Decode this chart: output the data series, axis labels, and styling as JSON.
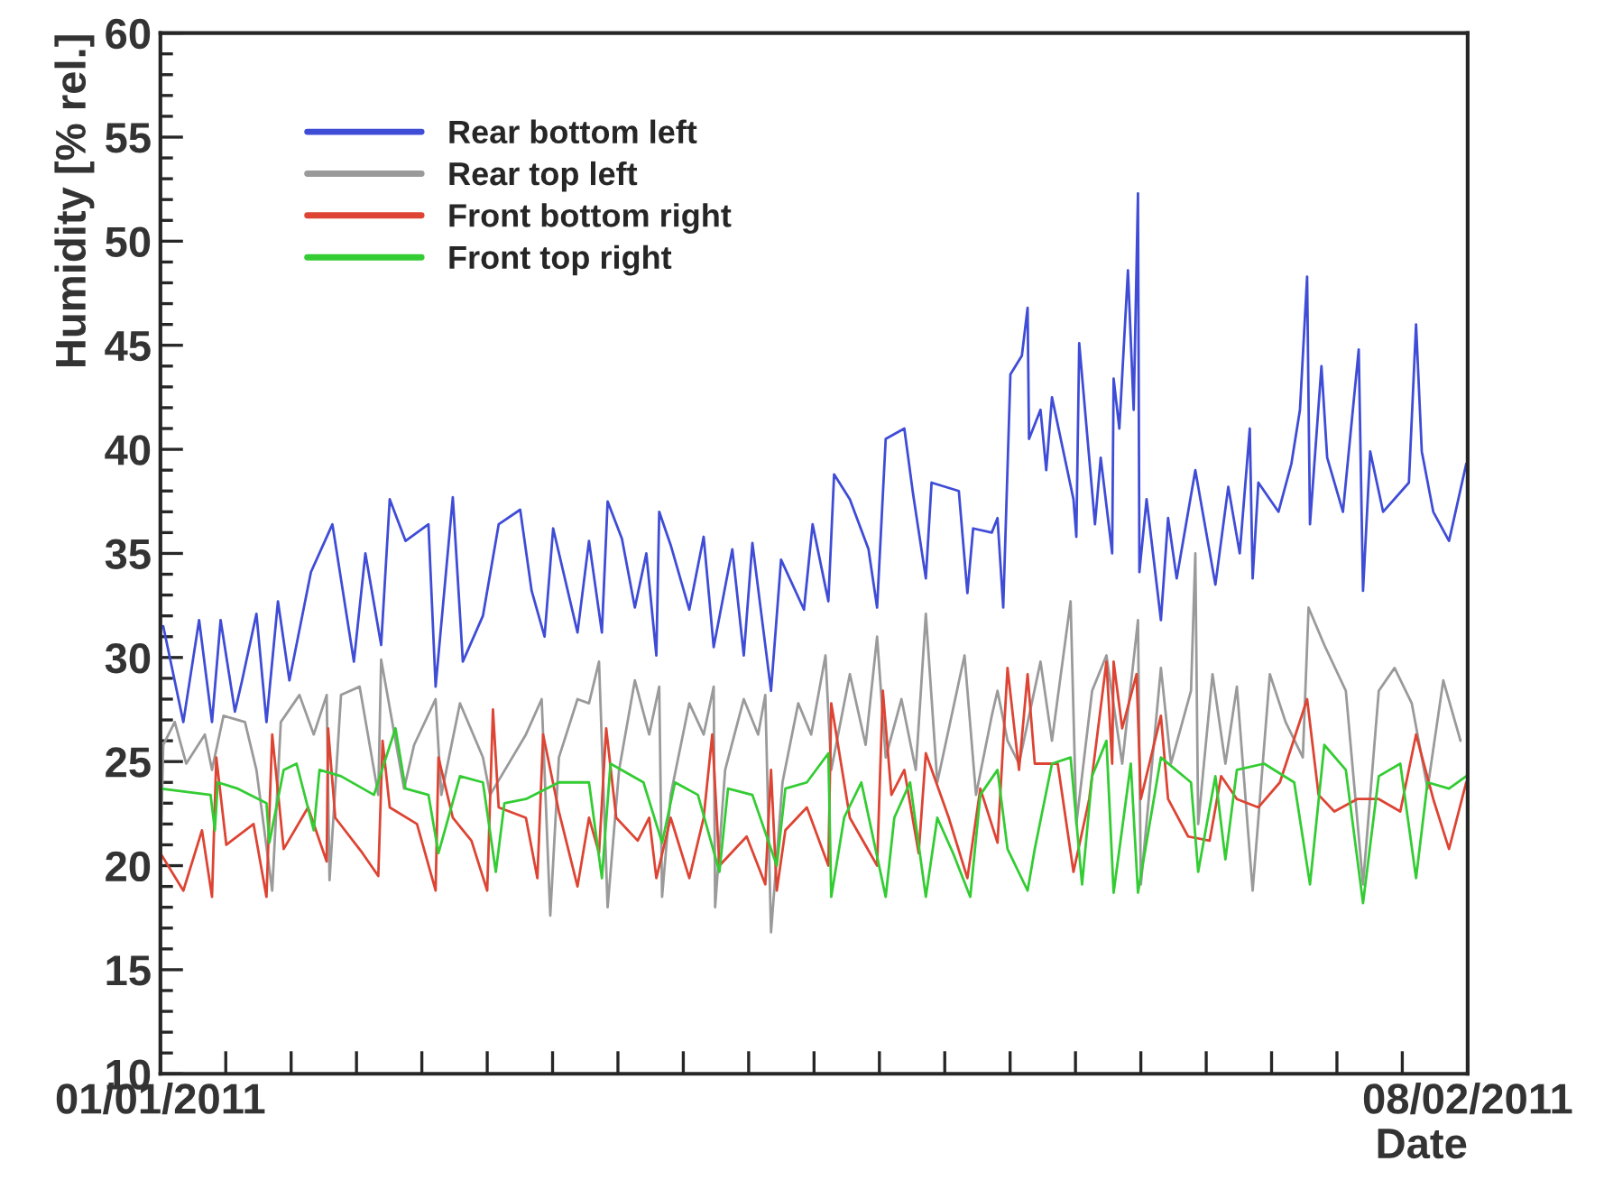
{
  "chart_data": {
    "type": "line",
    "xlabel": "Date",
    "ylabel": "Humidity [% rel.]",
    "xlim": [
      "2011-01-01T00:00",
      "2011-02-08T00:00"
    ],
    "xticks": [
      {
        "value": "2011-01-01T00:00",
        "label": "01/01/2011"
      },
      {
        "value": "2011-01-02T21:36",
        "label": null
      },
      {
        "value": "2011-01-04T19:12",
        "label": null
      },
      {
        "value": "2011-01-06T16:48",
        "label": null
      },
      {
        "value": "2011-01-08T14:24",
        "label": null
      },
      {
        "value": "2011-01-10T12:00",
        "label": null
      },
      {
        "value": "2011-01-12T09:36",
        "label": null
      },
      {
        "value": "2011-01-14T07:12",
        "label": null
      },
      {
        "value": "2011-01-16T04:48",
        "label": null
      },
      {
        "value": "2011-01-18T02:24",
        "label": null
      },
      {
        "value": "2011-01-20T00:00",
        "label": null
      },
      {
        "value": "2011-01-21T21:36",
        "label": null
      },
      {
        "value": "2011-01-23T19:12",
        "label": null
      },
      {
        "value": "2011-01-25T16:48",
        "label": null
      },
      {
        "value": "2011-01-27T14:24",
        "label": null
      },
      {
        "value": "2011-01-29T12:00",
        "label": null
      },
      {
        "value": "2011-01-31T09:36",
        "label": null
      },
      {
        "value": "2011-02-02T07:12",
        "label": null
      },
      {
        "value": "2011-02-04T04:48",
        "label": null
      },
      {
        "value": "2011-02-06T02:24",
        "label": null
      },
      {
        "value": "2011-02-08T00:00",
        "label": "08/02/2011"
      }
    ],
    "ylim": [
      10,
      60
    ],
    "yticks": [
      10,
      15,
      20,
      25,
      30,
      35,
      40,
      45,
      50,
      55,
      60
    ],
    "grid": false,
    "legend": "top left",
    "marker": "none",
    "line_style": "solid",
    "series": [
      {
        "name": "Rear bottom left",
        "color": "#3f4cd6",
        "x": [
          "2011-01-01T02:00",
          "2011-01-01T16:00",
          "2011-01-02T03:00",
          "2011-01-02T12:00",
          "2011-01-02T18:00",
          "2011-01-03T04:00",
          "2011-01-03T09:00",
          "2011-01-03T19:00",
          "2011-01-04T02:00",
          "2011-01-04T10:00",
          "2011-01-04T18:00",
          "2011-01-05T09:00",
          "2011-01-06T00:00",
          "2011-01-06T15:00",
          "2011-01-06T23:00",
          "2011-01-07T10:00",
          "2011-01-07T16:00",
          "2011-01-08T03:00",
          "2011-01-08T19:00",
          "2011-01-09T00:00",
          "2011-01-09T12:00",
          "2011-01-09T19:00",
          "2011-01-10T09:00",
          "2011-01-10T20:00",
          "2011-01-11T11:00",
          "2011-01-11T19:00",
          "2011-01-12T04:00",
          "2011-01-12T10:00",
          "2011-01-13T03:00",
          "2011-01-13T11:00",
          "2011-01-13T20:00",
          "2011-01-14T00:00",
          "2011-01-14T10:00",
          "2011-01-14T19:00",
          "2011-01-15T03:00",
          "2011-01-15T10:00",
          "2011-01-15T12:00",
          "2011-01-15T20:00",
          "2011-01-16T09:00",
          "2011-01-16T19:00",
          "2011-01-17T02:00",
          "2011-01-17T15:00",
          "2011-01-17T23:00",
          "2011-01-18T05:00",
          "2011-01-18T18:00",
          "2011-01-19T01:00",
          "2011-01-19T17:00",
          "2011-01-19T23:00",
          "2011-01-20T10:00",
          "2011-01-20T14:00",
          "2011-01-21T01:00",
          "2011-01-21T14:00",
          "2011-01-21T20:00",
          "2011-01-22T02:00",
          "2011-01-22T15:00",
          "2011-01-22T21:00",
          "2011-01-23T06:00",
          "2011-01-23T10:00",
          "2011-01-24T05:00",
          "2011-01-24T11:00",
          "2011-01-24T15:00",
          "2011-01-25T04:00",
          "2011-01-25T08:00",
          "2011-01-25T12:00",
          "2011-01-25T17:00",
          "2011-01-26T01:00",
          "2011-01-26T05:00",
          "2011-01-26T06:00",
          "2011-01-26T14:00",
          "2011-01-26T18:00",
          "2011-01-26T22:00",
          "2011-01-27T13:00",
          "2011-01-27T15:00",
          "2011-01-27T17:00",
          "2011-01-28T04:00",
          "2011-01-28T08:00",
          "2011-01-28T16:00",
          "2011-01-28T17:00",
          "2011-01-28T21:00",
          "2011-01-29T03:00",
          "2011-01-29T07:00",
          "2011-01-29T10:00",
          "2011-01-29T11:00",
          "2011-01-29T16:00",
          "2011-01-30T02:00",
          "2011-01-30T07:00",
          "2011-01-30T13:00",
          "2011-01-31T02:00",
          "2011-01-31T16:00",
          "2011-02-01T01:00",
          "2011-02-01T09:00",
          "2011-02-01T16:00",
          "2011-02-01T18:00",
          "2011-02-01T22:00",
          "2011-02-02T12:00",
          "2011-02-02T21:00",
          "2011-02-03T03:00",
          "2011-02-03T08:00",
          "2011-02-03T10:00",
          "2011-02-03T18:00",
          "2011-02-03T22:00",
          "2011-02-04T09:00",
          "2011-02-04T20:00",
          "2011-02-04T23:00",
          "2011-02-05T04:00",
          "2011-02-05T13:00",
          "2011-02-06T07:00",
          "2011-02-06T12:00",
          "2011-02-06T16:00",
          "2011-02-07T00:00",
          "2011-02-07T11:00",
          "2011-02-07T23:00"
        ],
        "values": [
          31.5,
          26.9,
          31.8,
          26.9,
          31.8,
          27.4,
          28.9,
          32.1,
          26.9,
          32.7,
          28.9,
          34.1,
          36.4,
          29.8,
          35.0,
          30.6,
          37.6,
          35.6,
          36.4,
          28.6,
          37.7,
          29.8,
          32.0,
          36.4,
          37.1,
          33.2,
          31.0,
          36.2,
          31.2,
          35.6,
          31.2,
          37.5,
          35.7,
          32.4,
          35.0,
          30.1,
          37.0,
          35.4,
          32.3,
          35.8,
          30.5,
          35.2,
          30.1,
          35.5,
          28.4,
          34.7,
          32.3,
          36.4,
          32.7,
          38.8,
          37.6,
          35.2,
          32.4,
          40.5,
          41.0,
          37.9,
          33.8,
          38.4,
          38.0,
          33.1,
          36.2,
          36.0,
          36.7,
          32.4,
          43.6,
          44.5,
          46.8,
          40.5,
          41.9,
          39.0,
          42.5,
          37.6,
          35.8,
          45.1,
          36.4,
          39.6,
          35.0,
          43.4,
          41.0,
          48.6,
          41.9,
          52.3,
          34.1,
          37.6,
          31.8,
          36.7,
          33.8,
          39.0,
          33.5,
          38.2,
          35.0,
          41.0,
          33.8,
          38.4,
          37.0,
          39.3,
          41.9,
          48.3,
          36.4,
          44.0,
          39.6,
          37.0,
          44.8,
          33.2,
          39.9,
          37.0,
          38.4,
          46.0,
          39.9,
          37.0,
          35.6,
          39.3
        ]
      },
      {
        "name": "Rear top left",
        "color": "#9a9a9a",
        "x": [
          "2011-01-01T00:00",
          "2011-01-01T02:00",
          "2011-01-01T10:00",
          "2011-01-01T18:00",
          "2011-01-02T07:00",
          "2011-01-02T12:00",
          "2011-01-02T20:00",
          "2011-01-03T11:00",
          "2011-01-03T19:00",
          "2011-01-04T06:00",
          "2011-01-04T12:00",
          "2011-01-05T01:00",
          "2011-01-05T11:00",
          "2011-01-05T20:00",
          "2011-01-05T22:00",
          "2011-01-06T06:00",
          "2011-01-06T19:00",
          "2011-01-07T08:00",
          "2011-01-07T10:00",
          "2011-01-08T02:00",
          "2011-01-08T09:00",
          "2011-01-09T00:00",
          "2011-01-09T04:00",
          "2011-01-09T17:00",
          "2011-01-10T09:00",
          "2011-01-10T14:00",
          "2011-01-11T15:00",
          "2011-01-12T02:00",
          "2011-01-12T08:00",
          "2011-01-12T14:00",
          "2011-01-13T03:00",
          "2011-01-13T11:00",
          "2011-01-13T18:00",
          "2011-01-14T00:00",
          "2011-01-14T08:00",
          "2011-01-14T19:00",
          "2011-01-15T05:00",
          "2011-01-15T12:00",
          "2011-01-15T14:00",
          "2011-01-15T20:00",
          "2011-01-16T09:00",
          "2011-01-16T19:00",
          "2011-01-17T02:00",
          "2011-01-17T03:00",
          "2011-01-17T10:00",
          "2011-01-17T23:00",
          "2011-01-18T09:00",
          "2011-01-18T14:00",
          "2011-01-18T18:00",
          "2011-01-19T02:00",
          "2011-01-19T13:00",
          "2011-01-19T22:00",
          "2011-01-20T08:00",
          "2011-01-20T12:00",
          "2011-01-21T01:00",
          "2011-01-21T12:00",
          "2011-01-21T20:00",
          "2011-01-22T02:00",
          "2011-01-22T13:00",
          "2011-01-22T23:00",
          "2011-01-23T06:00",
          "2011-01-23T14:00",
          "2011-01-24T09:00",
          "2011-01-24T17:00",
          "2011-01-25T04:00",
          "2011-01-25T08:00",
          "2011-01-25T15:00",
          "2011-01-25T23:00",
          "2011-01-26T14:00",
          "2011-01-26T22:00",
          "2011-01-27T11:00",
          "2011-01-27T15:00",
          "2011-01-28T02:00",
          "2011-01-28T12:00",
          "2011-01-28T23:00",
          "2011-01-29T10:00",
          "2011-01-29T12:00",
          "2011-01-30T02:00",
          "2011-01-30T09:00",
          "2011-01-30T23:00",
          "2011-01-31T02:00",
          "2011-01-31T04:00",
          "2011-01-31T14:00",
          "2011-01-31T23:00",
          "2011-02-01T07:00",
          "2011-02-01T18:00",
          "2011-02-02T06:00",
          "2011-02-02T17:00",
          "2011-02-03T05:00",
          "2011-02-03T09:00",
          "2011-02-03T20:00",
          "2011-02-04T11:00",
          "2011-02-04T23:00",
          "2011-02-05T10:00",
          "2011-02-05T21:00",
          "2011-02-06T09:00",
          "2011-02-06T20:00",
          "2011-02-07T07:00",
          "2011-02-07T19:00"
        ],
        "values": [
          20.0,
          25.8,
          26.9,
          24.9,
          26.3,
          24.6,
          27.2,
          26.9,
          24.6,
          18.8,
          26.9,
          28.2,
          26.3,
          28.2,
          19.3,
          28.2,
          28.6,
          23.4,
          29.9,
          23.7,
          25.8,
          28.0,
          23.4,
          27.8,
          25.2,
          23.4,
          26.3,
          28.0,
          17.6,
          25.2,
          28.0,
          27.8,
          29.8,
          18.0,
          24.6,
          28.9,
          26.3,
          28.6,
          18.5,
          23.4,
          27.8,
          26.3,
          28.6,
          18.0,
          24.6,
          28.0,
          26.3,
          28.2,
          16.8,
          24.0,
          27.8,
          26.3,
          30.1,
          24.6,
          29.2,
          25.8,
          31.0,
          25.2,
          28.0,
          24.6,
          32.1,
          24.0,
          30.1,
          23.4,
          27.2,
          28.4,
          26.0,
          24.9,
          29.8,
          26.0,
          32.7,
          22.0,
          28.4,
          30.1,
          24.9,
          31.8,
          19.1,
          29.5,
          24.9,
          28.4,
          35.0,
          22.0,
          29.2,
          24.9,
          28.6,
          18.8,
          29.2,
          26.9,
          25.2,
          32.4,
          30.6,
          28.4,
          19.1,
          28.4,
          29.5,
          27.8,
          23.7,
          28.9,
          26.0
        ]
      },
      {
        "name": "Front bottom right",
        "color": "#dd4433",
        "x": [
          "2011-01-01T00:00",
          "2011-01-01T16:00",
          "2011-01-02T05:00",
          "2011-01-02T12:00",
          "2011-01-02T15:00",
          "2011-01-02T22:00",
          "2011-01-03T17:00",
          "2011-01-04T02:00",
          "2011-01-04T06:00",
          "2011-01-04T14:00",
          "2011-01-05T07:00",
          "2011-01-05T20:00",
          "2011-01-05T21:00",
          "2011-01-06T02:00",
          "2011-01-06T21:00",
          "2011-01-07T08:00",
          "2011-01-07T11:00",
          "2011-01-07T16:00",
          "2011-01-08T11:00",
          "2011-01-09T00:00",
          "2011-01-09T02:00",
          "2011-01-09T12:00",
          "2011-01-10T01:00",
          "2011-01-10T12:00",
          "2011-01-10T16:00",
          "2011-01-10T20:00",
          "2011-01-11T15:00",
          "2011-01-11T23:00",
          "2011-01-12T03:00",
          "2011-01-12T14:00",
          "2011-01-13T03:00",
          "2011-01-13T11:00",
          "2011-01-13T18:00",
          "2011-01-13T23:00",
          "2011-01-14T06:00",
          "2011-01-14T21:00",
          "2011-01-15T05:00",
          "2011-01-15T10:00",
          "2011-01-15T20:00",
          "2011-01-16T09:00",
          "2011-01-16T19:00",
          "2011-01-17T01:00",
          "2011-01-17T06:00",
          "2011-01-18T01:00",
          "2011-01-18T14:00",
          "2011-01-18T18:00",
          "2011-01-18T22:00",
          "2011-01-19T04:00",
          "2011-01-19T19:00",
          "2011-01-20T10:00",
          "2011-01-20T12:00",
          "2011-01-21T01:00",
          "2011-01-21T20:00",
          "2011-01-22T00:00",
          "2011-01-22T06:00",
          "2011-01-22T15:00",
          "2011-01-23T01:00",
          "2011-01-23T06:00",
          "2011-01-23T22:00",
          "2011-01-24T11:00",
          "2011-01-24T20:00",
          "2011-01-25T08:00",
          "2011-01-25T15:00",
          "2011-01-25T23:00",
          "2011-01-26T05:00",
          "2011-01-26T10:00",
          "2011-01-27T02:00",
          "2011-01-27T13:00",
          "2011-01-28T00:00",
          "2011-01-28T12:00",
          "2011-01-28T16:00",
          "2011-01-28T17:00",
          "2011-01-28T23:00",
          "2011-01-29T09:00",
          "2011-01-29T12:00",
          "2011-01-30T02:00",
          "2011-01-30T07:00",
          "2011-01-30T21:00",
          "2011-01-31T12:00",
          "2011-01-31T20:00",
          "2011-02-01T07:00",
          "2011-02-01T22:00",
          "2011-02-02T13:00",
          "2011-02-03T08:00",
          "2011-02-03T16:00",
          "2011-02-04T03:00",
          "2011-02-04T19:00",
          "2011-02-05T10:00",
          "2011-02-06T01:00",
          "2011-02-06T12:00",
          "2011-02-07T00:00",
          "2011-02-07T11:00",
          "2011-02-07T23:00"
        ],
        "values": [
          20.6,
          18.8,
          21.7,
          18.5,
          25.2,
          21.0,
          22.0,
          18.5,
          26.3,
          20.8,
          22.8,
          20.2,
          26.6,
          22.3,
          20.6,
          19.5,
          26.0,
          22.8,
          22.0,
          18.8,
          25.2,
          22.3,
          21.2,
          18.8,
          27.5,
          22.8,
          22.3,
          19.4,
          26.3,
          22.6,
          19.0,
          22.3,
          20.6,
          26.6,
          22.3,
          21.2,
          22.3,
          19.4,
          22.3,
          19.4,
          22.3,
          26.3,
          20.0,
          21.4,
          19.1,
          24.6,
          18.8,
          21.7,
          22.8,
          20.0,
          27.8,
          22.3,
          20.0,
          28.4,
          23.4,
          24.6,
          20.6,
          25.4,
          22.3,
          19.4,
          23.7,
          21.1,
          29.5,
          24.6,
          29.2,
          24.9,
          24.9,
          19.7,
          23.2,
          29.8,
          24.9,
          29.8,
          26.6,
          29.2,
          23.2,
          27.2,
          23.2,
          21.4,
          21.2,
          24.3,
          23.2,
          22.8,
          24.0,
          28.0,
          23.4,
          22.6,
          23.2,
          23.2,
          22.6,
          26.3,
          23.2,
          20.8,
          24.0
        ]
      },
      {
        "name": "Front top right",
        "color": "#33cc33",
        "x": [
          "2011-01-01T00:00",
          "2011-01-02T11:00",
          "2011-01-02T14:00",
          "2011-01-02T16:00",
          "2011-01-03T06:00",
          "2011-01-04T02:00",
          "2011-01-04T04:00",
          "2011-01-04T14:00",
          "2011-01-04T23:00",
          "2011-01-05T11:00",
          "2011-01-05T15:00",
          "2011-01-06T06:00",
          "2011-01-07T05:00",
          "2011-01-07T20:00",
          "2011-01-08T03:00",
          "2011-01-08T19:00",
          "2011-01-09T02:00",
          "2011-01-09T17:00",
          "2011-01-10T09:00",
          "2011-01-10T18:00",
          "2011-01-11T00:00",
          "2011-01-11T15:00",
          "2011-01-12T14:00",
          "2011-01-13T11:00",
          "2011-01-13T20:00",
          "2011-01-14T02:00",
          "2011-01-15T01:00",
          "2011-01-15T14:00",
          "2011-01-15T23:00",
          "2011-01-16T15:00",
          "2011-01-17T06:00",
          "2011-01-17T12:00",
          "2011-01-18T05:00",
          "2011-01-18T22:00",
          "2011-01-19T04:00",
          "2011-01-19T19:00",
          "2011-01-20T10:00",
          "2011-01-20T12:00",
          "2011-01-20T21:00",
          "2011-01-21T09:00",
          "2011-01-22T02:00",
          "2011-01-22T08:00",
          "2011-01-22T19:00",
          "2011-01-23T06:00",
          "2011-01-23T14:00",
          "2011-01-24T01:00",
          "2011-01-24T13:00",
          "2011-01-24T20:00",
          "2011-01-25T08:00",
          "2011-01-25T15:00",
          "2011-01-26T05:00",
          "2011-01-26T10:00",
          "2011-01-26T22:00",
          "2011-01-27T11:00",
          "2011-01-27T19:00",
          "2011-01-28T02:00",
          "2011-01-28T12:00",
          "2011-01-28T17:00",
          "2011-01-29T05:00",
          "2011-01-29T10:00",
          "2011-01-30T02:00",
          "2011-01-30T23:00",
          "2011-01-31T04:00",
          "2011-01-31T16:00",
          "2011-01-31T23:00",
          "2011-02-01T07:00",
          "2011-02-02T02:00",
          "2011-02-02T23:00",
          "2011-02-03T10:00",
          "2011-02-03T20:00",
          "2011-02-04T11:00",
          "2011-02-04T23:00",
          "2011-02-05T10:00",
          "2011-02-06T01:00",
          "2011-02-06T12:00",
          "2011-02-06T20:00",
          "2011-02-07T11:00",
          "2011-02-07T23:00"
        ],
        "values": [
          23.7,
          23.4,
          21.7,
          24.0,
          23.7,
          23.0,
          21.1,
          24.6,
          24.9,
          21.7,
          24.6,
          24.3,
          23.4,
          26.6,
          23.7,
          23.4,
          20.6,
          24.3,
          24.0,
          19.7,
          23.0,
          23.2,
          24.0,
          24.0,
          19.4,
          24.9,
          24.0,
          21.1,
          24.0,
          23.4,
          19.7,
          23.7,
          23.4,
          20.0,
          23.7,
          24.0,
          25.4,
          18.5,
          22.3,
          24.0,
          18.5,
          22.3,
          24.0,
          18.5,
          22.3,
          20.6,
          18.5,
          23.4,
          24.6,
          20.8,
          18.8,
          20.8,
          24.9,
          25.2,
          19.1,
          24.3,
          26.0,
          18.7,
          24.9,
          18.7,
          25.2,
          24.0,
          19.7,
          24.3,
          20.3,
          24.6,
          24.9,
          24.0,
          19.1,
          25.8,
          24.6,
          18.2,
          24.3,
          24.9,
          19.4,
          24.0,
          23.7,
          24.3
        ]
      }
    ]
  }
}
